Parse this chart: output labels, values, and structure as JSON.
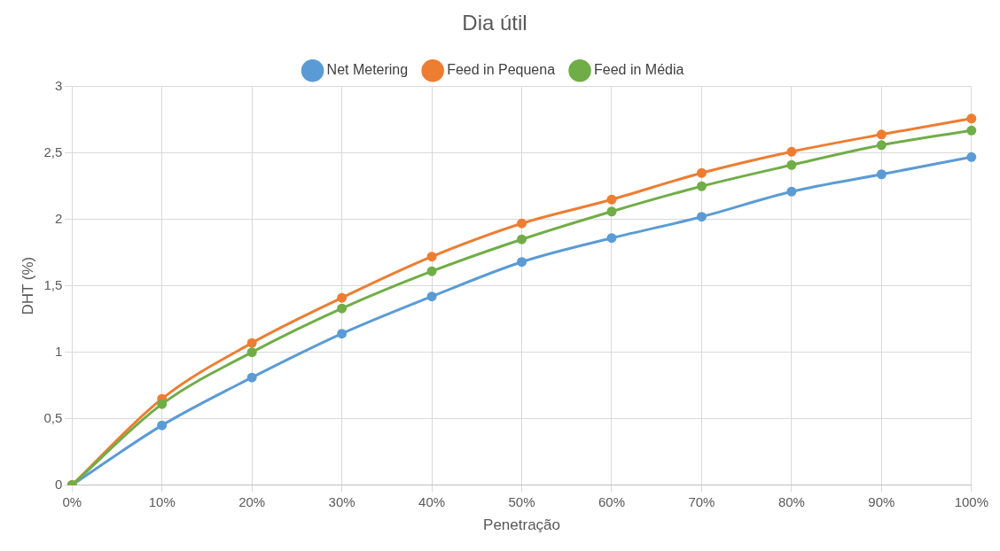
{
  "chart_data": {
    "type": "line",
    "title": "Dia útil",
    "xlabel": "Penetração",
    "ylabel": "DHT (%)",
    "categories": [
      "0%",
      "10%",
      "20%",
      "30%",
      "40%",
      "50%",
      "60%",
      "70%",
      "80%",
      "90%",
      "100%"
    ],
    "series": [
      {
        "name": "Net Metering",
        "color": "#5b9bd5",
        "values": [
          0,
          0.45,
          0.81,
          1.14,
          1.42,
          1.68,
          1.86,
          2.02,
          2.21,
          2.34,
          2.47
        ]
      },
      {
        "name": "Feed in Pequena",
        "color": "#ed7d31",
        "values": [
          0,
          0.65,
          1.07,
          1.41,
          1.72,
          1.97,
          2.15,
          2.35,
          2.51,
          2.64,
          2.76
        ]
      },
      {
        "name": "Feed in Média",
        "color": "#70ad47",
        "values": [
          0,
          0.61,
          1.0,
          1.33,
          1.61,
          1.85,
          2.06,
          2.25,
          2.41,
          2.56,
          2.67
        ]
      }
    ],
    "ylim": [
      0,
      3
    ],
    "yticks": [
      0,
      {
        "value": 0.5,
        "label": "0,5"
      },
      1,
      {
        "value": 1.5,
        "label": "1,5"
      },
      2,
      {
        "value": 2.5,
        "label": "2,5"
      },
      3
    ],
    "grid": true,
    "legend": "top",
    "marker": "circle",
    "line_style": "solid"
  }
}
